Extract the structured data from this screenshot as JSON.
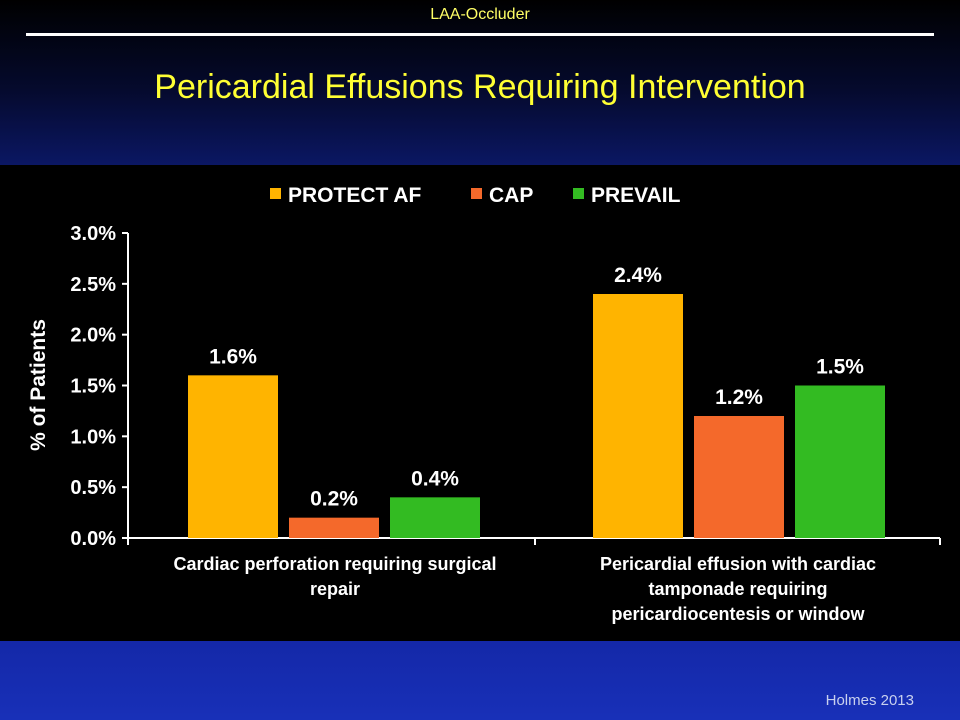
{
  "header": {
    "section_label": "LAA-Occluder",
    "title": "Pericardial Effusions Requiring Intervention"
  },
  "footer": {
    "citation": "Holmes 2013"
  },
  "chart_data": {
    "type": "bar",
    "ylabel": "% of Patients",
    "ylim": [
      0,
      3.0
    ],
    "yticks": [
      "0.0%",
      "0.5%",
      "1.0%",
      "1.5%",
      "2.0%",
      "2.5%",
      "3.0%"
    ],
    "ytick_values": [
      0,
      0.5,
      1.0,
      1.5,
      2.0,
      2.5,
      3.0
    ],
    "legend_position": "top",
    "categories": [
      [
        "Cardiac perforation requiring surgical",
        "repair"
      ],
      [
        "Pericardial effusion with cardiac",
        "tamponade requiring",
        "pericardiocentesis or window"
      ]
    ],
    "series": [
      {
        "name": "PROTECT AF",
        "color": "#ffb400",
        "values": [
          1.6,
          2.4
        ],
        "labels": [
          "1.6%",
          "2.4%"
        ]
      },
      {
        "name": "CAP",
        "color": "#f4692b",
        "values": [
          0.2,
          1.2
        ],
        "labels": [
          "0.2%",
          "1.2%"
        ]
      },
      {
        "name": "PREVAIL",
        "color": "#33bb22",
        "values": [
          0.4,
          1.5
        ],
        "labels": [
          "0.4%",
          "1.5%"
        ]
      }
    ],
    "grid": false
  }
}
